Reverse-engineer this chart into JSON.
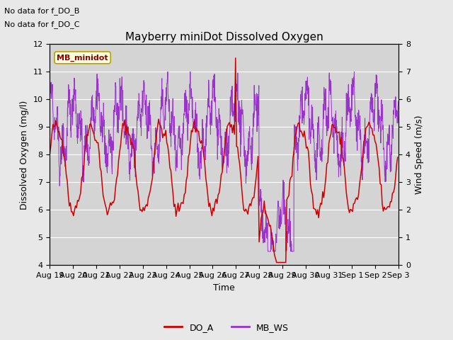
{
  "title": "Mayberry miniDot Dissolved Oxygen",
  "xlabel": "Time",
  "ylabel_left": "Dissolved Oxygen (mg/l)",
  "ylabel_right": "Wind Speed (m/s)",
  "annotation_lines": [
    "No data for f_DO_B",
    "No data for f_DO_C"
  ],
  "legend_label": "MB_minidot",
  "legend_line1": "DO_A",
  "legend_line2": "MB_WS",
  "do_color": "#cc0000",
  "ws_color": "#9933cc",
  "ylim_left": [
    4.0,
    12.0
  ],
  "ylim_right": [
    0.0,
    8.0
  ],
  "bg_color": "#e8e8e8",
  "plot_bg": "#d4d4d4",
  "n_points_do": 340,
  "n_points_ws": 1500,
  "title_fontsize": 11,
  "label_fontsize": 9,
  "tick_fontsize": 8,
  "annot_fontsize": 8,
  "legend_fontsize": 9
}
